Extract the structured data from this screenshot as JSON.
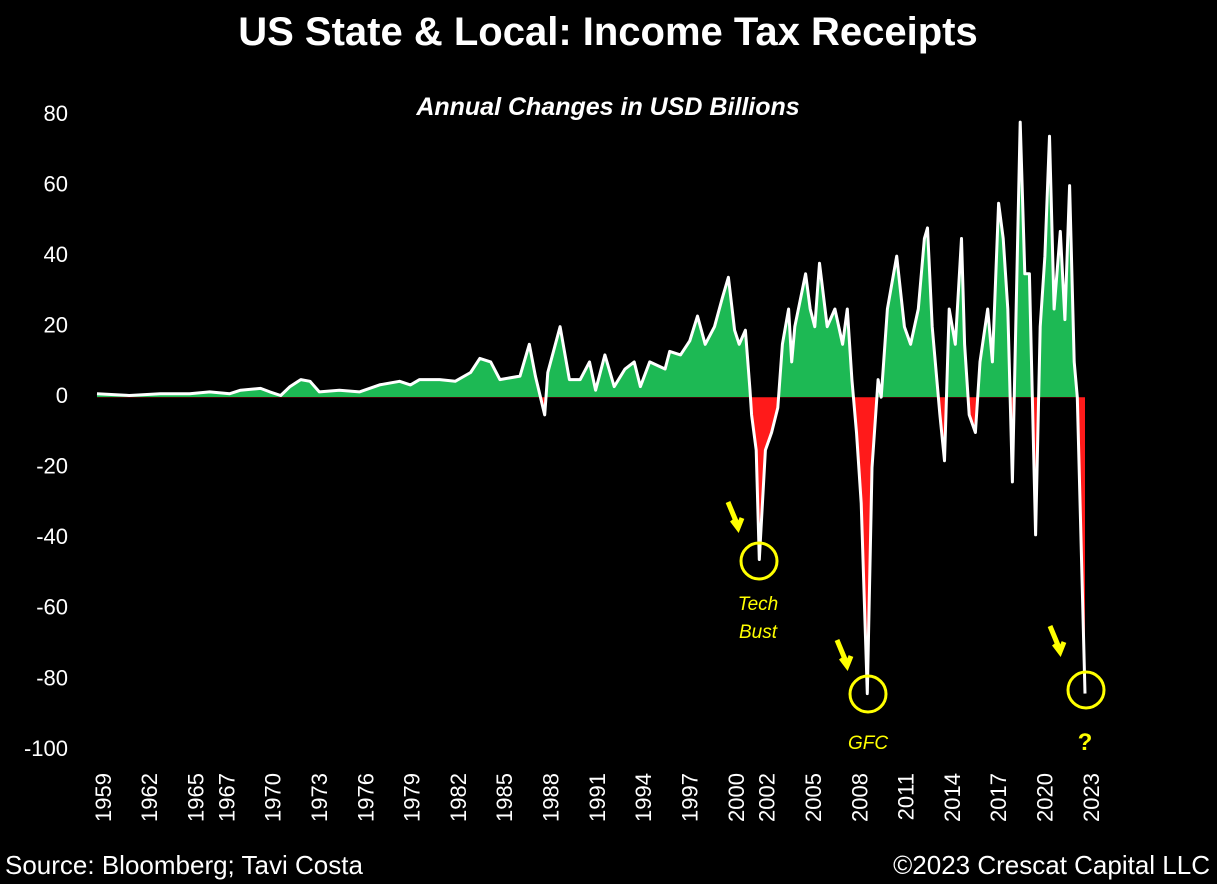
{
  "chart_data": {
    "type": "area",
    "title": "US State & Local: Income Tax Receipts",
    "subtitle": "Annual Changes in USD Billions",
    "source": "Source: Bloomberg; Tavi Costa",
    "credit": "©2023 Crescat Capital LLC",
    "annotations": [
      "Tech",
      "Bust",
      "GFC",
      "?"
    ],
    "positive_color": "#1db954",
    "negative_color": "#ff1a1a",
    "line_color": "#ffffff",
    "ylim": [
      -100,
      80
    ],
    "yticks": [
      -100,
      -80,
      -60,
      -40,
      -20,
      0,
      20,
      40,
      60,
      80
    ],
    "xlim": [
      1959,
      2023
    ],
    "xticks": [
      1959,
      1962,
      1965,
      1967,
      1970,
      1973,
      1976,
      1979,
      1982,
      1985,
      1988,
      1991,
      1994,
      1997,
      2000,
      2002,
      2005,
      2008,
      2011,
      2014,
      2017,
      2020,
      2023
    ],
    "x": [
      1959.0,
      1961.1,
      1963.1,
      1965.0,
      1966.3,
      1967.6,
      1968.3,
      1969.6,
      1970.2,
      1970.9,
      1971.5,
      1972.2,
      1972.8,
      1973.4,
      1974.7,
      1976.0,
      1977.3,
      1978.6,
      1979.3,
      1979.9,
      1981.2,
      1982.2,
      1983.2,
      1983.8,
      1984.5,
      1985.1,
      1986.4,
      1987.0,
      1987.4,
      1988.0,
      1988.2,
      1989.0,
      1989.6,
      1990.3,
      1990.9,
      1991.3,
      1991.9,
      1992.5,
      1993.2,
      1993.8,
      1994.2,
      1994.8,
      1995.8,
      1996.1,
      1996.8,
      1997.4,
      1997.9,
      1998.4,
      1999.0,
      1999.5,
      1999.9,
      2000.3,
      2000.6,
      2001.0,
      2001.3,
      2001.4,
      2001.7,
      2001.9,
      2002.3,
      2002.7,
      2003.1,
      2003.4,
      2003.8,
      2004.0,
      2004.2,
      2004.9,
      2005.2,
      2005.5,
      2005.8,
      2006.3,
      2006.8,
      2007.3,
      2007.6,
      2007.9,
      2008.2,
      2008.5,
      2008.9,
      2009.2,
      2009.6,
      2009.8,
      2010.2,
      2010.8,
      2011.3,
      2011.7,
      2012.2,
      2012.6,
      2012.8,
      2013.1,
      2013.6,
      2013.9,
      2014.2,
      2014.6,
      2015.0,
      2015.2,
      2015.5,
      2015.9,
      2016.2,
      2016.7,
      2017.0,
      2017.4,
      2017.7,
      2018.0,
      2018.3,
      2018.8,
      2019.1,
      2019.4,
      2019.8,
      2020.1,
      2020.4,
      2020.7,
      2021.0,
      2021.4,
      2021.7,
      2022.0,
      2022.3,
      2022.5,
      2022.8,
      2023.0
    ],
    "values": [
      1,
      0.5,
      1,
      1,
      1.5,
      1,
      2,
      2.5,
      1.5,
      0.5,
      3,
      5,
      4.5,
      1.5,
      2,
      1.5,
      3.5,
      4.5,
      3.5,
      5,
      5,
      4.5,
      7,
      11,
      10,
      5,
      6,
      15,
      6,
      -5,
      7,
      20,
      5,
      5,
      10,
      2,
      12,
      3,
      8,
      10,
      3,
      10,
      8,
      13,
      12,
      16,
      23,
      15,
      20,
      28,
      34,
      19,
      15,
      19,
      2,
      -5,
      -15,
      -46,
      -15,
      -10,
      -3,
      15,
      25,
      10,
      20,
      35,
      25,
      20,
      38,
      20,
      25,
      15,
      25,
      5,
      -10,
      -30,
      -84,
      -20,
      5,
      0,
      25,
      40,
      20,
      15,
      25,
      45,
      48,
      20,
      -5,
      -18,
      25,
      15,
      45,
      15,
      -5,
      -10,
      10,
      25,
      10,
      55,
      45,
      25,
      -24,
      78,
      35,
      35,
      -39,
      20,
      40,
      74,
      25,
      47,
      22,
      60,
      10,
      0,
      -50,
      -84
    ]
  }
}
